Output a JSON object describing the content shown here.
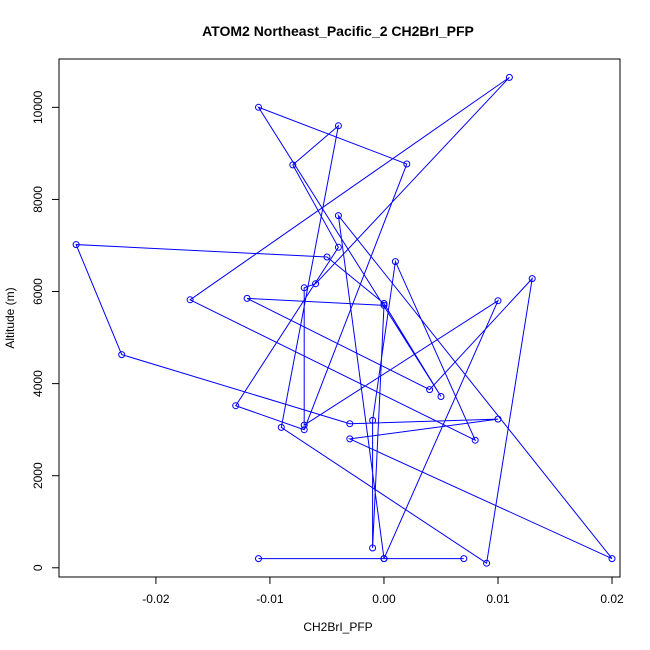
{
  "chart_data": {
    "type": "line",
    "title": "ATOM2 Northeast_Pacific_2 CH2BrI_PFP",
    "xlabel": "CH2BrI_PFP",
    "ylabel": "Altitude (m)",
    "xlim": [
      -0.0285,
      0.0207
    ],
    "ylim": [
      -200,
      11050
    ],
    "xticks": [
      -0.02,
      -0.01,
      0.0,
      0.01,
      0.02
    ],
    "xtick_labels": [
      "-0.02",
      "-0.01",
      "0.00",
      "0.01",
      "0.02"
    ],
    "yticks": [
      0,
      2000,
      4000,
      6000,
      8000,
      10000
    ],
    "ytick_labels": [
      "0",
      "2000",
      "4000",
      "6000",
      "8000",
      "10000"
    ],
    "grid": false,
    "legend": "none",
    "series": [
      {
        "color": "#0000ff",
        "marker": "open-circle",
        "x": [
          -0.011,
          0.007,
          0.0,
          0.01,
          -0.007,
          -0.007,
          -0.006,
          0.011,
          -0.017,
          0.008,
          0.001,
          -0.001,
          -0.001,
          0.0,
          -0.012,
          0.004,
          0.013,
          0.009,
          -0.009,
          -0.004,
          -0.008,
          -0.004,
          -0.013,
          -0.007,
          0.002,
          -0.011,
          0.005,
          0.0,
          -0.005,
          -0.027,
          -0.023,
          -0.003,
          0.01,
          -0.003,
          0.02,
          -0.004,
          0.0
        ],
        "y": [
          200,
          200,
          200,
          5800,
          3100,
          6080,
          6170,
          10650,
          5820,
          2770,
          6650,
          3200,
          430,
          5700,
          5850,
          3870,
          6280,
          100,
          3050,
          9600,
          8750,
          6960,
          3520,
          3000,
          8770,
          10000,
          3720,
          5740,
          6750,
          7020,
          4630,
          3130,
          3230,
          2800,
          200,
          7650,
          200
        ]
      }
    ]
  }
}
